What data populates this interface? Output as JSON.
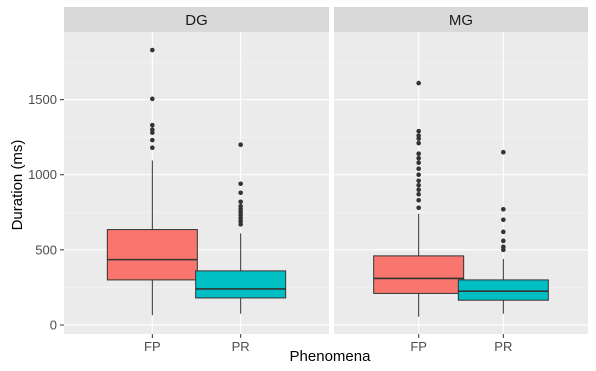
{
  "chart_data": {
    "type": "boxplot",
    "xlabel": "Phenomena",
    "ylabel": "Duration (ms)",
    "ylim": [
      -60,
      1950
    ],
    "yticks": [
      0,
      500,
      1000,
      1500
    ],
    "categories": [
      "FP",
      "PR"
    ],
    "colors": {
      "FP": "#F8766D",
      "PR": "#00BFC4"
    },
    "panel_background": "#EBEBEB",
    "grid": true,
    "legend": "none",
    "panels": [
      {
        "name": "DG",
        "boxes": [
          {
            "category": "FP",
            "min": 65,
            "q1": 300,
            "median": 435,
            "q3": 635,
            "max": 1095,
            "outliers": [
              1180,
              1230,
              1280,
              1300,
              1330,
              1505,
              1830
            ]
          },
          {
            "category": "PR",
            "min": 75,
            "q1": 180,
            "median": 240,
            "q3": 360,
            "max": 610,
            "outliers": [
              670,
              690,
              710,
              730,
              750,
              770,
              790,
              820,
              880,
              940,
              1200
            ]
          }
        ]
      },
      {
        "name": "MG",
        "boxes": [
          {
            "category": "FP",
            "min": 55,
            "q1": 210,
            "median": 310,
            "q3": 460,
            "max": 740,
            "outliers": [
              780,
              830,
              870,
              900,
              930,
              960,
              1000,
              1040,
              1080,
              1110,
              1140,
              1210,
              1240,
              1260,
              1290,
              1610
            ]
          },
          {
            "category": "PR",
            "min": 75,
            "q1": 165,
            "median": 225,
            "q3": 300,
            "max": 440,
            "outliers": [
              500,
              520,
              560,
              620,
              700,
              770,
              1150
            ]
          }
        ]
      }
    ]
  }
}
